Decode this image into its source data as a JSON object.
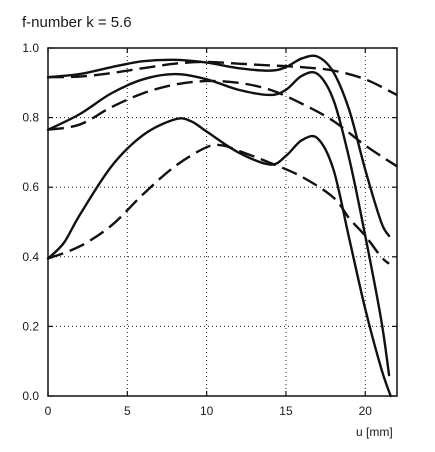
{
  "chart_data": {
    "type": "line",
    "title": "f-number k = 5.6",
    "xlabel": "u [mm]",
    "ylabel": "",
    "xlim": [
      0,
      22
    ],
    "ylim": [
      0,
      1.0
    ],
    "xticks": [
      0,
      5,
      10,
      15,
      20
    ],
    "yticks": [
      0.0,
      0.2,
      0.4,
      0.6,
      0.8,
      1.0
    ],
    "xtick_labels": [
      "0",
      "5",
      "10",
      "15",
      "20"
    ],
    "ytick_labels": [
      "0.0",
      "0.2",
      "0.4",
      "0.6",
      "0.8",
      "1.0"
    ],
    "grid": true,
    "series": [
      {
        "style": "solid",
        "x": [
          0,
          2,
          4,
          6,
          8,
          10,
          12,
          14,
          15,
          16,
          17,
          18,
          19,
          20,
          21,
          21.5
        ],
        "y": [
          0.916,
          0.925,
          0.945,
          0.962,
          0.966,
          0.958,
          0.942,
          0.935,
          0.945,
          0.97,
          0.975,
          0.93,
          0.82,
          0.65,
          0.5,
          0.46
        ]
      },
      {
        "style": "solid",
        "x": [
          0,
          2,
          4,
          6,
          8,
          10,
          12,
          14,
          15,
          16,
          17,
          18,
          19,
          20,
          21,
          21.5
        ],
        "y": [
          0.765,
          0.81,
          0.87,
          0.91,
          0.925,
          0.91,
          0.88,
          0.865,
          0.88,
          0.92,
          0.925,
          0.85,
          0.68,
          0.46,
          0.22,
          0.06
        ]
      },
      {
        "style": "solid",
        "x": [
          0,
          1,
          2,
          4,
          6,
          8,
          9,
          10,
          12,
          14,
          15,
          16,
          17,
          18,
          19,
          20,
          21,
          21.6
        ],
        "y": [
          0.395,
          0.44,
          0.52,
          0.66,
          0.75,
          0.795,
          0.79,
          0.76,
          0.7,
          0.665,
          0.69,
          0.735,
          0.74,
          0.65,
          0.45,
          0.25,
          0.08,
          0.0
        ]
      },
      {
        "style": "dashed",
        "x": [
          0,
          2,
          4,
          6,
          8,
          10,
          12,
          14,
          16,
          18,
          20,
          22
        ],
        "y": [
          0.916,
          0.918,
          0.928,
          0.942,
          0.955,
          0.96,
          0.955,
          0.95,
          0.945,
          0.935,
          0.91,
          0.865
        ]
      },
      {
        "style": "dashed",
        "x": [
          0,
          2,
          4,
          6,
          8,
          10,
          12,
          14,
          16,
          18,
          20,
          22
        ],
        "y": [
          0.765,
          0.78,
          0.83,
          0.87,
          0.895,
          0.905,
          0.9,
          0.88,
          0.84,
          0.79,
          0.72,
          0.66
        ]
      },
      {
        "style": "dashed",
        "x": [
          0,
          2,
          4,
          6,
          8,
          10,
          11,
          12,
          14,
          16,
          18,
          19,
          20,
          21,
          21.5
        ],
        "y": [
          0.395,
          0.43,
          0.49,
          0.58,
          0.66,
          0.715,
          0.72,
          0.705,
          0.67,
          0.63,
          0.57,
          0.51,
          0.46,
          0.4,
          0.38
        ]
      }
    ]
  }
}
